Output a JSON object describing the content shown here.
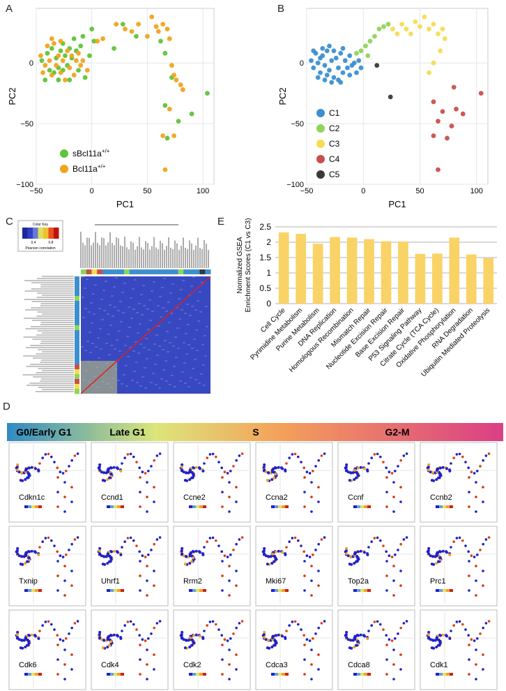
{
  "panels": {
    "A": "A",
    "B": "B",
    "C": "C",
    "D": "D",
    "E": "E"
  },
  "chart_data": [
    {
      "id": "A",
      "type": "scatter",
      "xlabel": "PC1",
      "ylabel": "PC2",
      "xlim": [
        -50,
        110
      ],
      "ylim": [
        -100,
        45
      ],
      "xticks": [
        "−50",
        "0",
        "50",
        "100"
      ],
      "yticks": [
        "0",
        "−50",
        "−100"
      ],
      "legend": [
        {
          "name": "sBcl11a",
          "sup": "+/+",
          "color": "#5fc43a"
        },
        {
          "name": "Bcl11a",
          "sup": "+/+",
          "color": "#f2a31c"
        }
      ],
      "series": [
        {
          "name": "sBcl11a+/+",
          "color": "#5fc43a",
          "points": [
            [
              -45,
              2
            ],
            [
              -40,
              8
            ],
            [
              -36,
              12
            ],
            [
              -32,
              4
            ],
            [
              -30,
              -4
            ],
            [
              -28,
              10
            ],
            [
              -26,
              16
            ],
            [
              -24,
              6
            ],
            [
              -22,
              -2
            ],
            [
              -20,
              12
            ],
            [
              -18,
              4
            ],
            [
              -16,
              20
            ],
            [
              -14,
              10
            ],
            [
              -12,
              -6
            ],
            [
              -10,
              14
            ],
            [
              -8,
              22
            ],
            [
              -6,
              -12
            ],
            [
              -2,
              6
            ],
            [
              0,
              28
            ],
            [
              2,
              18
            ],
            [
              -34,
              -8
            ],
            [
              -38,
              -6
            ],
            [
              -42,
              -14
            ],
            [
              -30,
              -14
            ],
            [
              20,
              12
            ],
            [
              28,
              32
            ],
            [
              40,
              22
            ],
            [
              62,
              18
            ],
            [
              66,
              8
            ],
            [
              72,
              -12
            ],
            [
              78,
              -48
            ],
            [
              90,
              -42
            ],
            [
              104,
              -25
            ],
            [
              66,
              -35
            ],
            [
              68,
              -62
            ],
            [
              -26,
              -6
            ],
            [
              -20,
              -14
            ]
          ]
        },
        {
          "name": "Bcl11a+/+",
          "color": "#f2a31c",
          "points": [
            [
              -46,
              6
            ],
            [
              -42,
              -2
            ],
            [
              -40,
              14
            ],
            [
              -38,
              2
            ],
            [
              -36,
              -10
            ],
            [
              -34,
              16
            ],
            [
              -32,
              -2
            ],
            [
              -30,
              6
            ],
            [
              -28,
              -8
            ],
            [
              -26,
              2
            ],
            [
              -24,
              -14
            ],
            [
              -22,
              10
            ],
            [
              -20,
              -4
            ],
            [
              -18,
              6
            ],
            [
              -16,
              -10
            ],
            [
              -14,
              2
            ],
            [
              -12,
              8
            ],
            [
              -10,
              -2
            ],
            [
              -8,
              2
            ],
            [
              -4,
              -6
            ],
            [
              5,
              18
            ],
            [
              10,
              20
            ],
            [
              22,
              32
            ],
            [
              30,
              28
            ],
            [
              36,
              26
            ],
            [
              42,
              32
            ],
            [
              50,
              22
            ],
            [
              54,
              38
            ],
            [
              58,
              30
            ],
            [
              60,
              26
            ],
            [
              64,
              32
            ],
            [
              68,
              28
            ],
            [
              70,
              20
            ],
            [
              72,
              -2
            ],
            [
              74,
              -10
            ],
            [
              76,
              -14
            ],
            [
              80,
              -18
            ],
            [
              82,
              -22
            ],
            [
              70,
              -38
            ],
            [
              74,
              -60
            ],
            [
              64,
              -60
            ],
            [
              66,
              -88
            ],
            [
              -44,
              -8
            ],
            [
              -36,
              20
            ],
            [
              -28,
              18
            ]
          ]
        }
      ]
    },
    {
      "id": "B",
      "type": "scatter",
      "xlabel": "PC1",
      "ylabel": "PC2",
      "xlim": [
        -50,
        110
      ],
      "ylim": [
        -100,
        45
      ],
      "xticks": [
        "−50",
        "0",
        "50",
        "100"
      ],
      "yticks": [
        "0",
        "−50",
        "−100"
      ],
      "legend": [
        {
          "name": "C1",
          "color": "#3d8fcf"
        },
        {
          "name": "C2",
          "color": "#8fd45c"
        },
        {
          "name": "C3",
          "color": "#f6dc55"
        },
        {
          "name": "C4",
          "color": "#c8504c"
        },
        {
          "name": "C5",
          "color": "#3a3a3a"
        }
      ],
      "series": [
        {
          "name": "C1",
          "color": "#3d8fcf",
          "points": [
            [
              -46,
              2
            ],
            [
              -44,
              -4
            ],
            [
              -42,
              8
            ],
            [
              -40,
              0
            ],
            [
              -38,
              -8
            ],
            [
              -36,
              6
            ],
            [
              -34,
              -2
            ],
            [
              -32,
              10
            ],
            [
              -30,
              -6
            ],
            [
              -28,
              2
            ],
            [
              -26,
              -12
            ],
            [
              -24,
              4
            ],
            [
              -22,
              -4
            ],
            [
              -20,
              8
            ],
            [
              -18,
              -8
            ],
            [
              -16,
              2
            ],
            [
              -14,
              -4
            ],
            [
              -12,
              6
            ],
            [
              -10,
              -2
            ],
            [
              -8,
              0
            ],
            [
              -6,
              -8
            ],
            [
              -40,
              -12
            ],
            [
              -34,
              -14
            ],
            [
              -28,
              -16
            ],
            [
              -22,
              -14
            ],
            [
              -44,
              10
            ],
            [
              -36,
              12
            ],
            [
              -26,
              10
            ],
            [
              -18,
              12
            ],
            [
              -12,
              -10
            ],
            [
              -30,
              14
            ],
            [
              -20,
              -16
            ],
            [
              -4,
              2
            ],
            [
              -2,
              -4
            ],
            [
              -38,
              4
            ],
            [
              -32,
              -10
            ]
          ]
        },
        {
          "name": "C2",
          "color": "#8fd45c",
          "points": [
            [
              -2,
              10
            ],
            [
              2,
              14
            ],
            [
              6,
              18
            ],
            [
              10,
              22
            ],
            [
              14,
              28
            ],
            [
              18,
              30
            ],
            [
              22,
              32
            ],
            [
              -6,
              8
            ],
            [
              4,
              6
            ]
          ]
        },
        {
          "name": "C3",
          "color": "#f6dc55",
          "points": [
            [
              26,
              28
            ],
            [
              30,
              24
            ],
            [
              34,
              32
            ],
            [
              38,
              28
            ],
            [
              42,
              24
            ],
            [
              46,
              34
            ],
            [
              50,
              30
            ],
            [
              54,
              38
            ],
            [
              58,
              28
            ],
            [
              62,
              32
            ],
            [
              66,
              24
            ],
            [
              70,
              28
            ],
            [
              72,
              20
            ],
            [
              68,
              10
            ],
            [
              62,
              0
            ],
            [
              58,
              -8
            ]
          ]
        },
        {
          "name": "C4",
          "color": "#c8504c",
          "points": [
            [
              62,
              -32
            ],
            [
              66,
              -48
            ],
            [
              70,
              -40
            ],
            [
              74,
              -62
            ],
            [
              78,
              -52
            ],
            [
              82,
              -38
            ],
            [
              88,
              -42
            ],
            [
              104,
              -25
            ],
            [
              80,
              -20
            ],
            [
              66,
              -88
            ],
            [
              62,
              -60
            ]
          ]
        },
        {
          "name": "C5",
          "color": "#3a3a3a",
          "points": [
            [
              12,
              -2
            ],
            [
              24,
              -28
            ]
          ]
        }
      ]
    },
    {
      "id": "C",
      "type": "heatmap",
      "colorkey_title": "Color Key",
      "colorkey_ticks": [
        "0.4",
        "0.8"
      ],
      "colorkey_label": "Pearson correlation",
      "side_colors": [
        "#3d8fcf",
        "#8fd45c",
        "#f6dc55",
        "#c8504c",
        "#3a3a3a"
      ]
    },
    {
      "id": "E",
      "type": "bar",
      "ylabel": "Normalized GSEA Enrichment Scores (C1 vs C3)",
      "ylim": [
        0,
        2.5
      ],
      "yticks": [
        "0",
        "0.5",
        "1",
        "1.5",
        "2",
        "2.5"
      ],
      "bar_color": "#f9d366",
      "categories": [
        "Cell Cycle",
        "Pyrimidine Metabolism",
        "Purine Metabolism",
        "DNA Replication",
        "Homologous Recombination",
        "Mismatch Repair",
        "Nucleotide Excision Repair",
        "Base Excision Repair",
        "P53 Signaling Pathway",
        "Citrate Cycle (TCA Cycle)",
        "Oxidative Phosphorylation",
        "RNA Degradation",
        "Ubiquitin Mediated Proteolysis"
      ],
      "values": [
        2.32,
        2.27,
        1.95,
        2.17,
        2.15,
        2.1,
        2.03,
        2.02,
        1.62,
        1.63,
        2.15,
        1.6,
        1.48
      ]
    },
    {
      "id": "D",
      "type": "scatter",
      "phase_bar": {
        "labels": [
          "G0/Early G1",
          "Late G1",
          "S",
          "G2-M"
        ],
        "colors": [
          "#2f8ac4",
          "#dce67a",
          "#f4a15a",
          "#db3e86"
        ]
      },
      "genes": [
        [
          "Cdkn1c",
          "Ccnd1",
          "Ccne2",
          "Ccna2",
          "Ccnf",
          "Ccnb2"
        ],
        [
          "Txnip",
          "Uhrf1",
          "Rrm2",
          "Mki67",
          "Top2a",
          "Prc1"
        ],
        [
          "Cdk6",
          "Cdk4",
          "Cdk2",
          "Cdca3",
          "Cdca8",
          "Cdk1"
        ]
      ]
    }
  ]
}
